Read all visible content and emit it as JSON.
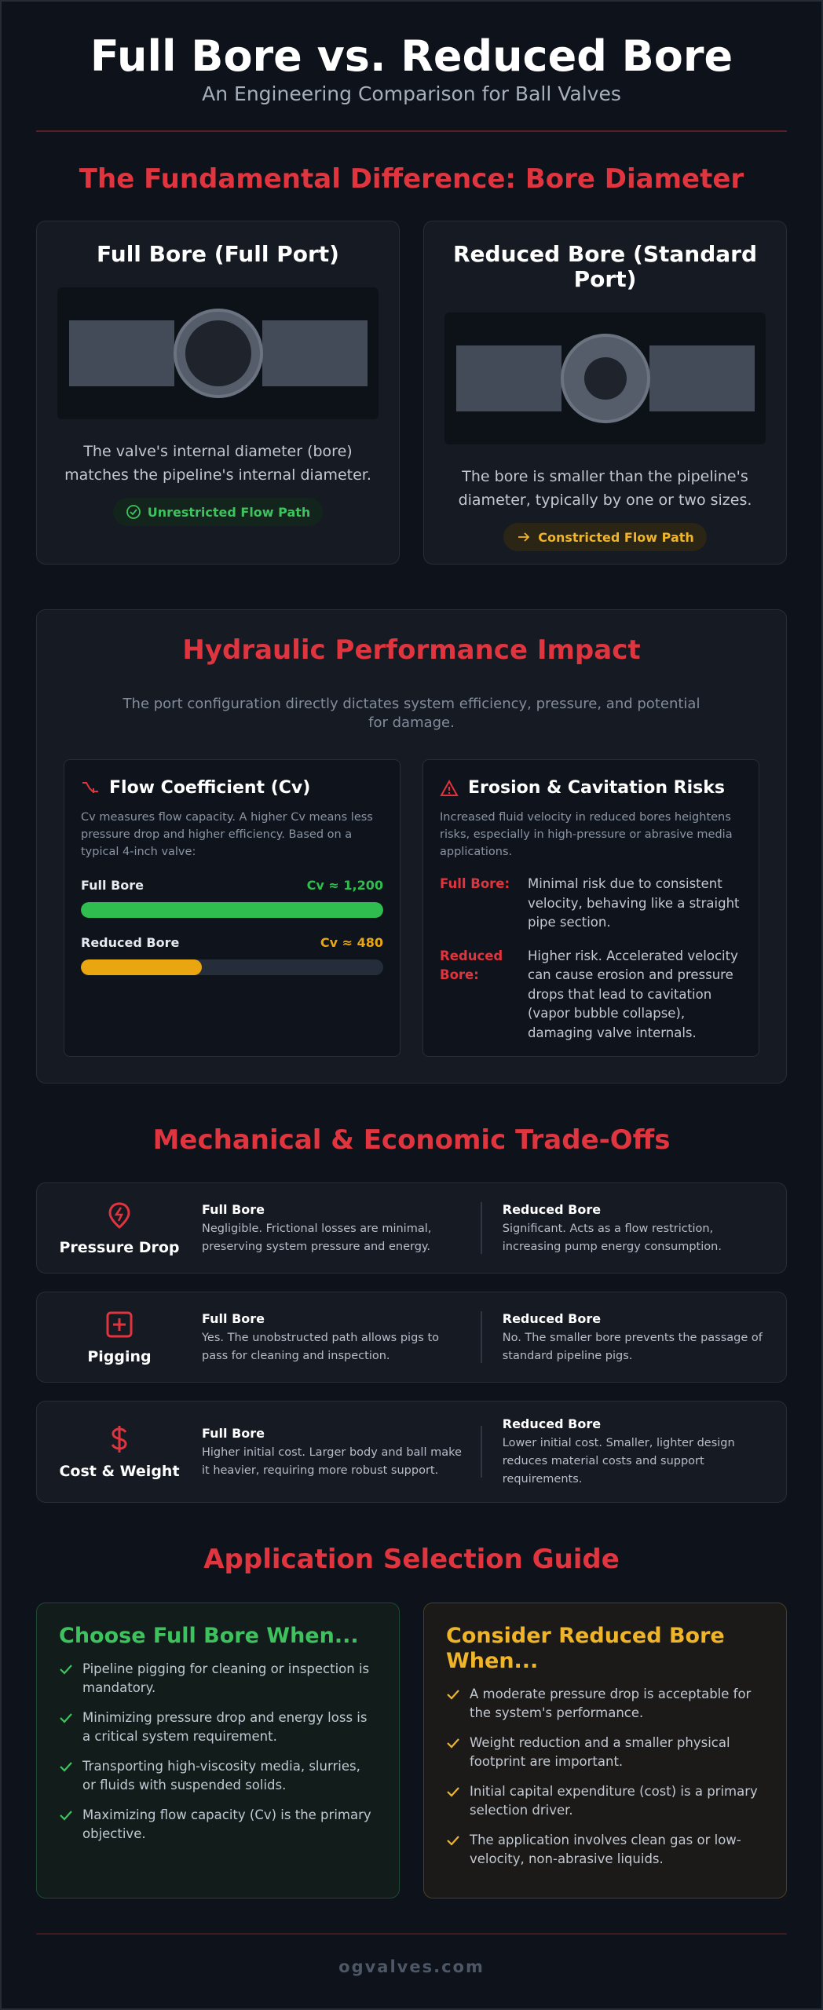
{
  "header": {
    "title": "Full Bore vs. Reduced Bore",
    "subtitle": "An Engineering Comparison for Ball Valves"
  },
  "bore_section": {
    "heading": "The Fundamental Difference: Bore Diameter",
    "cards": [
      {
        "title": "Full Bore (Full Port)",
        "description": "The valve's internal diameter (bore) matches the pipeline's internal diameter.",
        "badge": "Unrestricted Flow Path"
      },
      {
        "title": "Reduced Bore (Standard Port)",
        "description": "The bore is smaller than the pipeline's diameter, typically by one or two sizes.",
        "badge": "Constricted Flow Path"
      }
    ]
  },
  "hydraulic_section": {
    "heading": "Hydraulic Performance Impact",
    "intro": "The port configuration directly dictates system efficiency, pressure, and potential for damage.",
    "flow_coefficient": {
      "title": "Flow Coefficient (Cv)",
      "description": "Cv measures flow capacity. A higher Cv means less pressure drop and higher efficiency. Based on a typical 4-inch valve:",
      "bars": [
        {
          "label": "Full Bore",
          "value_label": "Cv ≈ 1,200",
          "value": 1200,
          "color": "#2ebd4e"
        },
        {
          "label": "Reduced Bore",
          "value_label": "Cv ≈ 480",
          "value": 480,
          "color": "#eaa611"
        }
      ]
    },
    "erosion": {
      "title": "Erosion & Cavitation Risks",
      "description": "Increased fluid velocity in reduced bores heightens risks, especially in high-pressure or abrasive media applications.",
      "items": [
        {
          "label": "Full Bore:",
          "text": "Minimal risk due to consistent velocity, behaving like a straight pipe section."
        },
        {
          "label": "Reduced Bore:",
          "text": "Higher risk. Accelerated velocity can cause erosion and pressure drops that lead to cavitation (vapor bubble collapse), damaging valve internals."
        }
      ]
    }
  },
  "tradeoffs_section": {
    "heading": "Mechanical & Economic Trade-Offs",
    "rows": [
      {
        "factor": "Pressure Drop",
        "full_bore_label": "Full Bore",
        "full_bore": "Negligible. Frictional losses are minimal, preserving system pressure and energy.",
        "reduced_bore_label": "Reduced Bore",
        "reduced_bore": "Significant. Acts as a flow restriction, increasing pump energy consumption."
      },
      {
        "factor": "Pigging",
        "full_bore_label": "Full Bore",
        "full_bore": "Yes. The unobstructed path allows pigs to pass for cleaning and inspection.",
        "reduced_bore_label": "Reduced Bore",
        "reduced_bore": "No. The smaller bore prevents the passage of standard pipeline pigs."
      },
      {
        "factor": "Cost & Weight",
        "full_bore_label": "Full Bore",
        "full_bore": "Higher initial cost. Larger body and ball make it heavier, requiring more robust support.",
        "reduced_bore_label": "Reduced Bore",
        "reduced_bore": "Lower initial cost. Smaller, lighter design reduces material costs and support requirements."
      }
    ]
  },
  "selection_section": {
    "heading": "Application Selection Guide",
    "cards": [
      {
        "title": "Choose Full Bore When...",
        "items": [
          "Pipeline pigging for cleaning or inspection is mandatory.",
          "Minimizing pressure drop and energy loss is a critical system requirement.",
          "Transporting high-viscosity media, slurries, or fluids with suspended solids.",
          "Maximizing flow capacity (Cv) is the primary objective."
        ]
      },
      {
        "title": "Consider Reduced Bore When...",
        "items": [
          "A moderate pressure drop is acceptable for the system's performance.",
          "Weight reduction and a smaller physical footprint are important.",
          "Initial capital expenditure (cost) is a primary selection driver.",
          "The application involves clean gas or low-velocity, non-abrasive liquids."
        ]
      }
    ]
  },
  "footer": {
    "text": "ogvalves.com"
  }
}
